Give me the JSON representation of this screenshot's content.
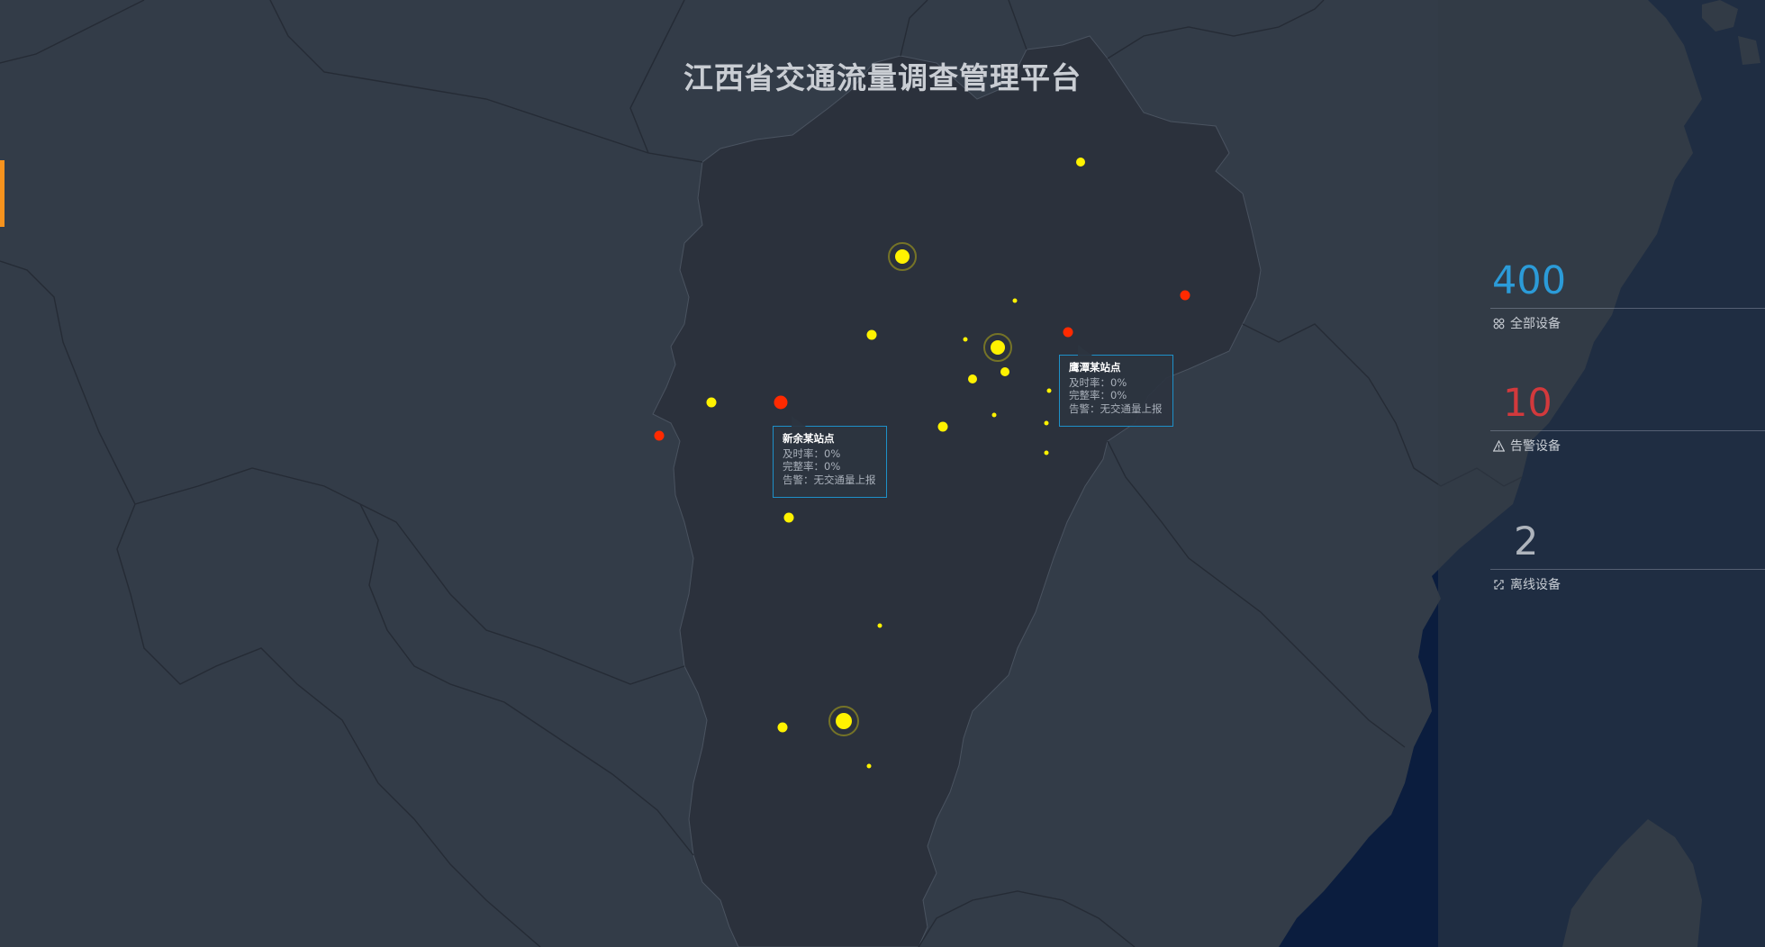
{
  "header": {
    "title": "江西省交通流量调查管理平台"
  },
  "stats": [
    {
      "value": "400",
      "label": "全部设备",
      "color": "#2b9bd8",
      "icon": "device-grid-icon"
    },
    {
      "value": "10",
      "label": "告警设备",
      "color": "#d2393c",
      "icon": "warning-triangle-icon"
    },
    {
      "value": "2",
      "label": "离线设备",
      "color": "#aeb4bc",
      "icon": "offline-link-icon"
    }
  ],
  "tooltips": [
    {
      "name": "新余某站点",
      "timely": "及时率：0%",
      "complete": "完整率：0%",
      "alarm": "告警：无交通量上报"
    },
    {
      "name": "鹰潭某站点",
      "timely": "及时率：0%",
      "complete": "完整率：0%",
      "alarm": "告警：无交通量上报"
    }
  ],
  "colors": {
    "background": "#333c48",
    "province": "#2b313c",
    "sea": "#0b1d3e",
    "normal_station": "#fff200",
    "alarm_station": "#ff2a00",
    "accent": "#f7931e"
  }
}
